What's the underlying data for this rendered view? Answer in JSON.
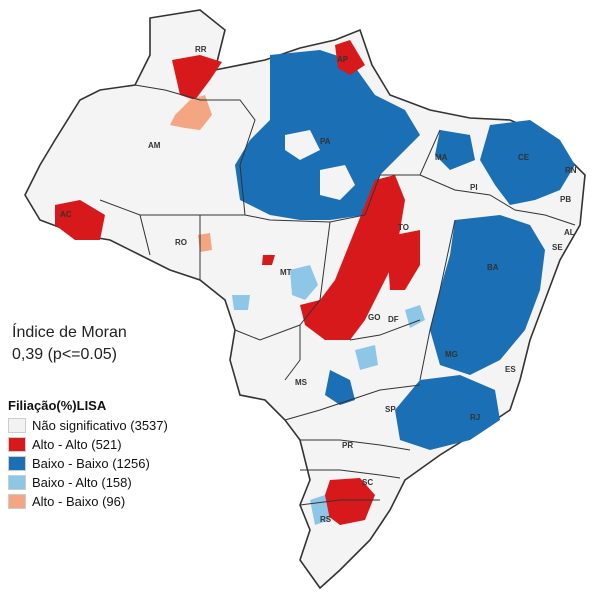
{
  "moran": {
    "title": "Índice de Moran",
    "value": "0,39  (p<=0.05)"
  },
  "legend": {
    "title": "Filiação(%)LISA",
    "items": [
      {
        "label": "Não significativo (3537)",
        "color": "#f2f2f2"
      },
      {
        "label": "Alto - Alto (521)",
        "color": "#d7191c"
      },
      {
        "label": "Baixo - Baixo (1256)",
        "color": "#1a6fb5"
      },
      {
        "label": "Baixo - Alto (158)",
        "color": "#8ec6e8"
      },
      {
        "label": "Alto - Baixo (96)",
        "color": "#f4a582"
      }
    ]
  },
  "states": [
    "RR",
    "AP",
    "AM",
    "PA",
    "MA",
    "CE",
    "RN",
    "PB",
    "PI",
    "AL",
    "SE",
    "AC",
    "RO",
    "TO",
    "BA",
    "MT",
    "GO",
    "DF",
    "MG",
    "ES",
    "MS",
    "SP",
    "RJ",
    "PR",
    "SC",
    "RS"
  ]
}
